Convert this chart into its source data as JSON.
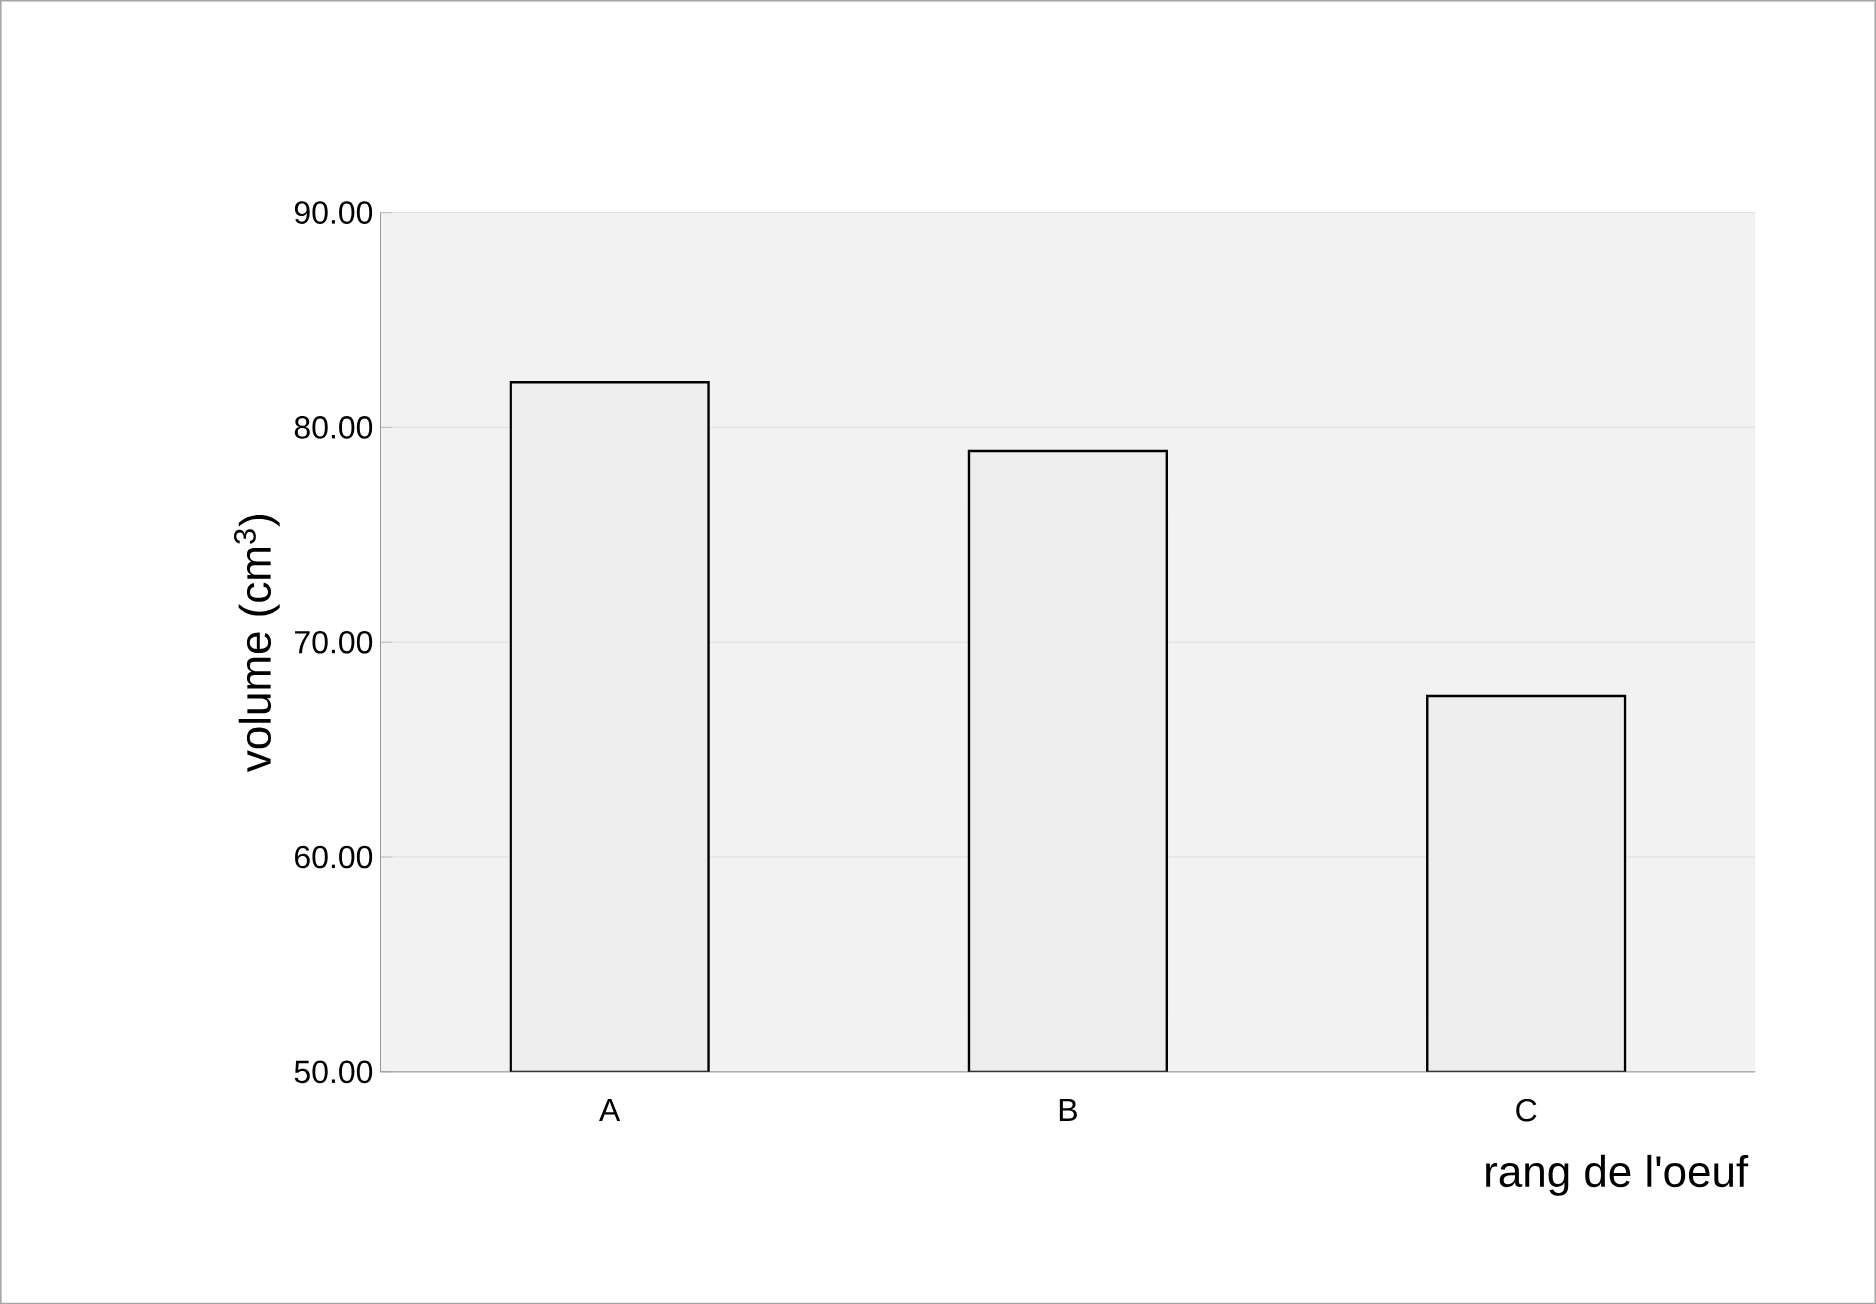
{
  "chart_data": {
    "type": "bar",
    "xlabel": "rang de l'oeuf",
    "ylabel": "volume (cm$^{3}$)",
    "categories": [
      "A",
      "B",
      "C"
    ],
    "values": [
      82.1,
      78.9,
      67.5
    ],
    "color": "#eeeeee",
    "ylim": [
      50,
      90
    ],
    "yticks": [
      {
        "value": 50,
        "label": "50.00"
      },
      {
        "value": 60,
        "label": "60.00"
      },
      {
        "value": 70,
        "label": "70.00"
      },
      {
        "value": 80,
        "label": "80.00"
      },
      {
        "value": 90,
        "label": "90.00"
      }
    ],
    "grid": "y"
  }
}
